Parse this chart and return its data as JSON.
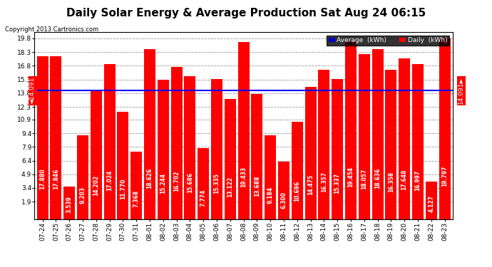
{
  "title": "Daily Solar Energy & Average Production Sat Aug 24 06:15",
  "copyright": "Copyright 2013 Cartronics.com",
  "average_value": 14.091,
  "bar_color": "#FF0000",
  "average_line_color": "#0000FF",
  "background_color": "#FFFFFF",
  "plot_bg_color": "#FFFFFF",
  "yticks": [
    1.9,
    3.4,
    4.9,
    6.4,
    7.9,
    9.4,
    10.9,
    12.3,
    13.8,
    15.3,
    16.8,
    18.3,
    19.8
  ],
  "ylim": [
    0,
    20.5
  ],
  "categories": [
    "07-24",
    "07-25",
    "07-26",
    "07-27",
    "07-28",
    "07-29",
    "07-30",
    "07-31",
    "08-01",
    "08-02",
    "08-03",
    "08-04",
    "08-05",
    "08-06",
    "08-07",
    "08-08",
    "08-09",
    "08-10",
    "08-11",
    "08-12",
    "08-13",
    "08-14",
    "08-15",
    "08-16",
    "08-17",
    "08-18",
    "08-19",
    "08-20",
    "08-21",
    "08-22",
    "08-23"
  ],
  "values": [
    17.88,
    17.846,
    3.539,
    9.203,
    14.202,
    17.024,
    11.77,
    7.368,
    18.626,
    15.244,
    16.702,
    15.686,
    7.774,
    15.335,
    13.122,
    19.433,
    13.688,
    9.184,
    6.3,
    10.696,
    14.475,
    16.357,
    15.337,
    19.454,
    18.057,
    18.636,
    16.358,
    17.648,
    16.997,
    4.127,
    19.797
  ],
  "legend_avg_color": "#0000CD",
  "legend_daily_color": "#FF0000",
  "grid_color": "#999999",
  "title_fontsize": 11,
  "tick_fontsize": 6.5,
  "value_fontsize": 5.5,
  "avg_label_fontsize": 6.5
}
